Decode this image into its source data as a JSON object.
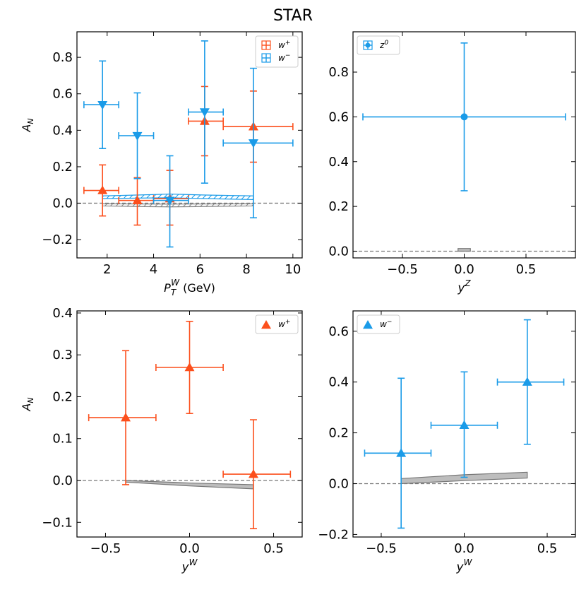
{
  "figure_title": "STAR",
  "colors": {
    "w_plus": "#fc4f1c",
    "w_minus": "#1a9be8",
    "z0": "#1a9be8",
    "theory": "#888888",
    "zero_line": "#777777"
  },
  "chart_data": [
    {
      "type": "scatter",
      "panel": "top-left",
      "xlabel": "P_T^W (GeV)",
      "ylabel": "A_N",
      "xlim": [
        0.7,
        10.4
      ],
      "ylim": [
        -0.3,
        0.94
      ],
      "xticks": [
        2,
        4,
        6,
        8,
        10
      ],
      "yticks": [
        -0.2,
        0.0,
        0.2,
        0.4,
        0.6,
        0.8
      ],
      "legend": "top-right",
      "series": [
        {
          "name": "W+",
          "marker": "triangle-up",
          "color": "#fc4f1c",
          "points": [
            {
              "x": 1.8,
              "y": 0.07,
              "xlo": 1.0,
              "xhi": 2.5,
              "ylo": -0.07,
              "yhi": 0.21
            },
            {
              "x": 3.3,
              "y": 0.015,
              "xlo": 2.5,
              "xhi": 4.0,
              "ylo": -0.12,
              "yhi": 0.14
            },
            {
              "x": 4.7,
              "y": 0.025,
              "xlo": 4.0,
              "xhi": 5.5,
              "ylo": -0.12,
              "yhi": 0.18
            },
            {
              "x": 6.2,
              "y": 0.45,
              "xlo": 5.5,
              "xhi": 7.0,
              "ylo": 0.26,
              "yhi": 0.64
            },
            {
              "x": 8.3,
              "y": 0.42,
              "xlo": 7.0,
              "xhi": 10.0,
              "ylo": 0.225,
              "yhi": 0.615
            }
          ]
        },
        {
          "name": "W−",
          "marker": "triangle-down",
          "color": "#1a9be8",
          "points": [
            {
              "x": 1.8,
              "y": 0.54,
              "xlo": 1.0,
              "xhi": 2.5,
              "ylo": 0.3,
              "yhi": 0.78
            },
            {
              "x": 3.3,
              "y": 0.37,
              "xlo": 2.5,
              "xhi": 4.0,
              "ylo": 0.135,
              "yhi": 0.605
            },
            {
              "x": 4.7,
              "y": 0.015,
              "xlo": 4.0,
              "xhi": 5.5,
              "ylo": -0.24,
              "yhi": 0.26
            },
            {
              "x": 6.2,
              "y": 0.5,
              "xlo": 5.5,
              "xhi": 7.0,
              "ylo": 0.11,
              "yhi": 0.89
            },
            {
              "x": 8.3,
              "y": 0.33,
              "xlo": 7.0,
              "xhi": 10.0,
              "ylo": -0.08,
              "yhi": 0.74
            }
          ]
        }
      ],
      "bands": [
        {
          "color": "#1a9be8",
          "hatched": true,
          "x": [
            1.8,
            3.3,
            4.7,
            6.2,
            8.3
          ],
          "lo": [
            0.025,
            0.028,
            0.03,
            0.025,
            0.02
          ],
          "hi": [
            0.04,
            0.045,
            0.05,
            0.045,
            0.04
          ]
        },
        {
          "color": "#888888",
          "hatched": true,
          "x": [
            1.8,
            3.3,
            4.7,
            6.2,
            8.3
          ],
          "lo": [
            -0.015,
            -0.018,
            -0.02,
            -0.018,
            -0.015
          ],
          "hi": [
            -0.003,
            -0.004,
            -0.005,
            -0.004,
            -0.003
          ]
        }
      ]
    },
    {
      "type": "scatter",
      "panel": "top-right",
      "xlabel": "y^{Z^0}",
      "ylabel": "",
      "xlim": [
        -0.9,
        0.9
      ],
      "ylim": [
        -0.03,
        0.98
      ],
      "xticks": [
        -0.5,
        0.0,
        0.5
      ],
      "yticks": [
        0.0,
        0.2,
        0.4,
        0.6,
        0.8
      ],
      "legend": "top-left",
      "series": [
        {
          "name": "Z0",
          "marker": "circle",
          "color": "#1a9be8",
          "points": [
            {
              "x": 0.0,
              "y": 0.6,
              "xlo": -0.82,
              "xhi": 0.82,
              "ylo": 0.27,
              "yhi": 0.93
            }
          ]
        }
      ],
      "bands": [
        {
          "color": "#888888",
          "hatched": false,
          "x": [
            -0.05,
            0.05
          ],
          "lo": [
            0.0,
            0.0
          ],
          "hi": [
            0.012,
            0.012
          ]
        }
      ]
    },
    {
      "type": "scatter",
      "panel": "bottom-left",
      "xlabel": "y^W",
      "ylabel": "A_N",
      "xlim": [
        -0.67,
        0.67
      ],
      "ylim": [
        -0.135,
        0.405
      ],
      "xticks": [
        -0.5,
        0.0,
        0.5
      ],
      "yticks": [
        -0.1,
        0.0,
        0.1,
        0.2,
        0.3,
        0.4
      ],
      "legend": "top-right",
      "series": [
        {
          "name": "W+",
          "marker": "triangle-up",
          "color": "#fc4f1c",
          "points": [
            {
              "x": -0.38,
              "y": 0.15,
              "xlo": -0.6,
              "xhi": -0.2,
              "ylo": -0.01,
              "yhi": 0.31
            },
            {
              "x": 0.0,
              "y": 0.27,
              "xlo": -0.2,
              "xhi": 0.2,
              "ylo": 0.16,
              "yhi": 0.38
            },
            {
              "x": 0.38,
              "y": 0.015,
              "xlo": 0.2,
              "xhi": 0.6,
              "ylo": -0.115,
              "yhi": 0.145
            }
          ]
        }
      ],
      "bands": [
        {
          "color": "#888888",
          "hatched": false,
          "x": [
            -0.38,
            0.0,
            0.38
          ],
          "lo": [
            -0.004,
            -0.013,
            -0.02
          ],
          "hi": [
            0.0,
            -0.006,
            -0.01
          ]
        }
      ]
    },
    {
      "type": "scatter",
      "panel": "bottom-right",
      "xlabel": "y^W",
      "ylabel": "",
      "xlim": [
        -0.67,
        0.67
      ],
      "ylim": [
        -0.21,
        0.68
      ],
      "xticks": [
        -0.5,
        0.0,
        0.5
      ],
      "yticks": [
        -0.2,
        0.0,
        0.2,
        0.4,
        0.6
      ],
      "legend": "top-left",
      "series": [
        {
          "name": "W−",
          "marker": "triangle-up",
          "color": "#1a9be8",
          "points": [
            {
              "x": -0.38,
              "y": 0.12,
              "xlo": -0.6,
              "xhi": -0.2,
              "ylo": -0.175,
              "yhi": 0.415
            },
            {
              "x": 0.0,
              "y": 0.23,
              "xlo": -0.2,
              "xhi": 0.2,
              "ylo": 0.025,
              "yhi": 0.44
            },
            {
              "x": 0.38,
              "y": 0.4,
              "xlo": 0.2,
              "xhi": 0.6,
              "ylo": 0.155,
              "yhi": 0.645
            }
          ]
        }
      ],
      "bands": [
        {
          "color": "#888888",
          "hatched": false,
          "x": [
            -0.38,
            0.0,
            0.38
          ],
          "lo": [
            0.0,
            0.012,
            0.022
          ],
          "hi": [
            0.02,
            0.035,
            0.045
          ]
        }
      ]
    }
  ]
}
